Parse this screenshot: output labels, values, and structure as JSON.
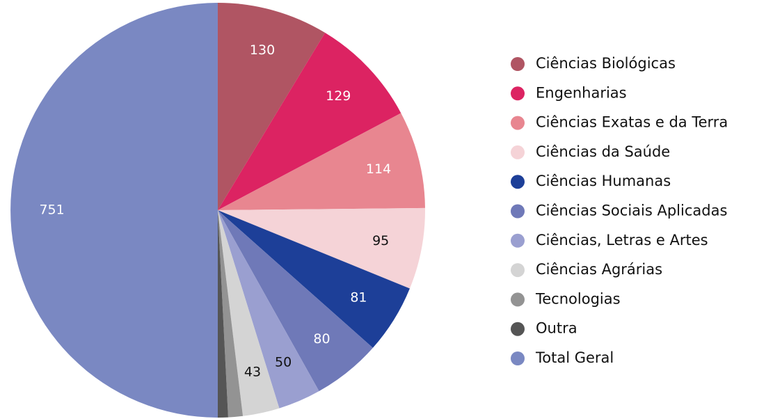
{
  "chart_data": {
    "type": "pie",
    "categories": [
      "Ciências Biológicas",
      "Engenharias",
      "Ciências Exatas e da Terra",
      "Ciências da Saúde",
      "Ciências Humanas",
      "Ciências Sociais Aplicadas",
      "Ciências, Letras e Artes",
      "Ciências Agrárias",
      "Tecnologias",
      "Outra",
      "Total Geral"
    ],
    "values": [
      130,
      129,
      114,
      95,
      81,
      80,
      50,
      43,
      17,
      12,
      751
    ],
    "colors": [
      "#b05563",
      "#dc2362",
      "#e88690",
      "#f5d3d7",
      "#1d3f98",
      "#6f79b8",
      "#9a9fd0",
      "#d4d4d4",
      "#939393",
      "#555555",
      "#7a88c2"
    ],
    "legend": "right"
  }
}
